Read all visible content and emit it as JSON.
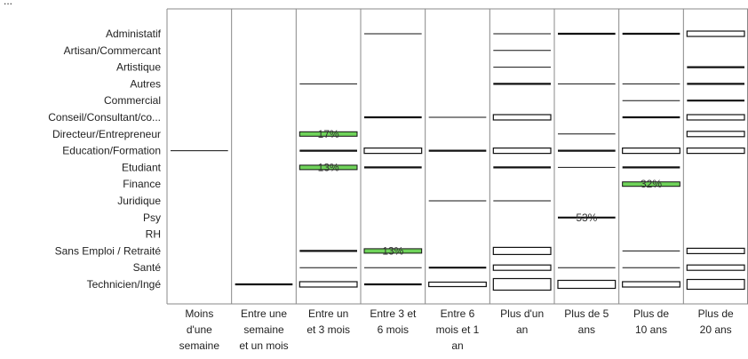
{
  "chart_data": {
    "type": "heatmap",
    "title": "",
    "truncated_header": "...",
    "rows": [
      "Administatif",
      "Artisan/Commercant",
      "Artistique",
      "Autres",
      "Commercial",
      "Conseil/Consultant/co...",
      "Directeur/Entrepreneur",
      "Education/Formation",
      "Etudiant",
      "Finance",
      "Juridique",
      "Psy",
      "RH",
      "Sans Emploi / Retraité",
      "Santé",
      "Technicien/Ingé"
    ],
    "columns": [
      [
        "Moins",
        "d'une",
        "semaine"
      ],
      [
        "Entre une",
        "semaine",
        "et un mois"
      ],
      [
        "Entre un",
        "et 3 mois"
      ],
      [
        "Entre 3 et",
        "6 mois"
      ],
      [
        "Entre 6",
        "mois et 1",
        "an"
      ],
      [
        "Plus d'un",
        "an"
      ],
      [
        "Plus de 5",
        "ans"
      ],
      [
        "Plus de",
        "10 ans"
      ],
      [
        "Plus de",
        "20 ans"
      ]
    ],
    "cells": [
      {
        "row": 7,
        "col": 0,
        "value": 1
      },
      {
        "row": 15,
        "col": 1,
        "value": 2
      },
      {
        "row": 3,
        "col": 2,
        "value": 1
      },
      {
        "row": 6,
        "col": 2,
        "value": 3,
        "label": "17%",
        "highlight": true
      },
      {
        "row": 7,
        "col": 2,
        "value": 2
      },
      {
        "row": 8,
        "col": 2,
        "value": 3,
        "label": "13%",
        "highlight": true
      },
      {
        "row": 13,
        "col": 2,
        "value": 2
      },
      {
        "row": 14,
        "col": 2,
        "value": 1
      },
      {
        "row": 15,
        "col": 2,
        "value": 5
      },
      {
        "row": 0,
        "col": 3,
        "value": 1
      },
      {
        "row": 5,
        "col": 3,
        "value": 2
      },
      {
        "row": 7,
        "col": 3,
        "value": 5
      },
      {
        "row": 8,
        "col": 3,
        "value": 2
      },
      {
        "row": 13,
        "col": 3,
        "value": 5,
        "label": "13%",
        "highlight": true
      },
      {
        "row": 14,
        "col": 3,
        "value": 1
      },
      {
        "row": 15,
        "col": 3,
        "value": 2
      },
      {
        "row": 5,
        "col": 4,
        "value": 1
      },
      {
        "row": 7,
        "col": 4,
        "value": 2
      },
      {
        "row": 10,
        "col": 4,
        "value": 1
      },
      {
        "row": 14,
        "col": 4,
        "value": 2
      },
      {
        "row": 15,
        "col": 4,
        "value": 4
      },
      {
        "row": 0,
        "col": 5,
        "value": 1
      },
      {
        "row": 1,
        "col": 5,
        "value": 1
      },
      {
        "row": 2,
        "col": 5,
        "value": 1
      },
      {
        "row": 3,
        "col": 5,
        "value": 2
      },
      {
        "row": 5,
        "col": 5,
        "value": 5
      },
      {
        "row": 7,
        "col": 5,
        "value": 5
      },
      {
        "row": 8,
        "col": 5,
        "value": 2
      },
      {
        "row": 10,
        "col": 5,
        "value": 1
      },
      {
        "row": 13,
        "col": 5,
        "value": 7
      },
      {
        "row": 14,
        "col": 5,
        "value": 5
      },
      {
        "row": 15,
        "col": 5,
        "value": 12
      },
      {
        "row": 0,
        "col": 6,
        "value": 2
      },
      {
        "row": 3,
        "col": 6,
        "value": 1
      },
      {
        "row": 6,
        "col": 6,
        "value": 1
      },
      {
        "row": 7,
        "col": 6,
        "value": 2
      },
      {
        "row": 8,
        "col": 6,
        "value": 1
      },
      {
        "row": 11,
        "col": 6,
        "value": 2,
        "label": "53%"
      },
      {
        "row": 14,
        "col": 6,
        "value": 1
      },
      {
        "row": 15,
        "col": 6,
        "value": 8
      },
      {
        "row": 0,
        "col": 7,
        "value": 2
      },
      {
        "row": 3,
        "col": 7,
        "value": 1
      },
      {
        "row": 4,
        "col": 7,
        "value": 1
      },
      {
        "row": 5,
        "col": 7,
        "value": 2
      },
      {
        "row": 7,
        "col": 7,
        "value": 5
      },
      {
        "row": 8,
        "col": 7,
        "value": 2
      },
      {
        "row": 9,
        "col": 7,
        "value": 4,
        "label": "32%",
        "highlight": true
      },
      {
        "row": 13,
        "col": 7,
        "value": 1
      },
      {
        "row": 14,
        "col": 7,
        "value": 1
      },
      {
        "row": 15,
        "col": 7,
        "value": 5
      },
      {
        "row": 0,
        "col": 8,
        "value": 5
      },
      {
        "row": 2,
        "col": 8,
        "value": 2
      },
      {
        "row": 3,
        "col": 8,
        "value": 2
      },
      {
        "row": 4,
        "col": 8,
        "value": 2
      },
      {
        "row": 5,
        "col": 8,
        "value": 5
      },
      {
        "row": 6,
        "col": 8,
        "value": 5
      },
      {
        "row": 7,
        "col": 8,
        "value": 5
      },
      {
        "row": 13,
        "col": 8,
        "value": 5
      },
      {
        "row": 14,
        "col": 8,
        "value": 5
      },
      {
        "row": 15,
        "col": 8,
        "value": 10
      }
    ],
    "colors": {
      "mark": "#111111",
      "fill": "#ffffff",
      "highlight": "#6fd35a",
      "grid": "#888888",
      "text": "#222222"
    }
  }
}
